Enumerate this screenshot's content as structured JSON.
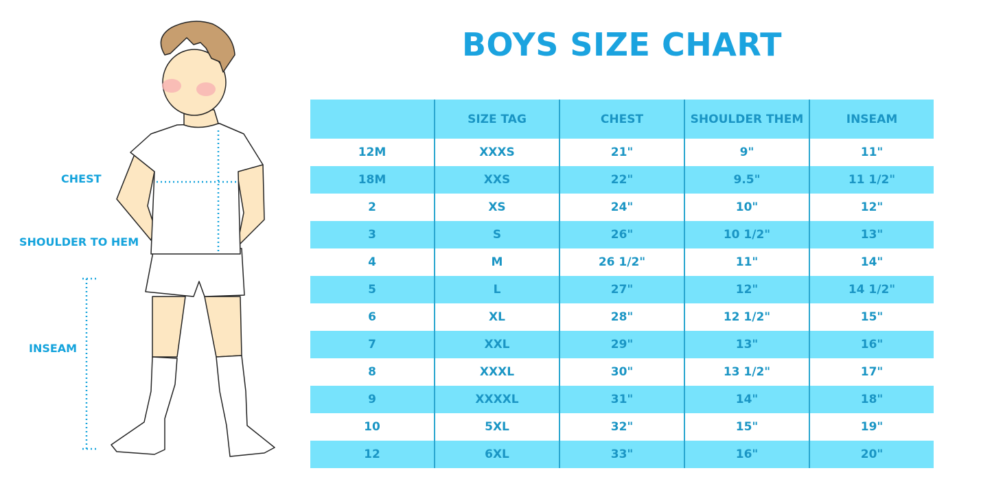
{
  "title": "BOYS SIZE CHART",
  "figure_labels": {
    "chest": "CHEST",
    "shoulder_to_hem": "SHOULDER TO HEM",
    "inseam": "INSEAM"
  },
  "colors": {
    "title": "#1ba3df",
    "row_highlight": "#77e3fc",
    "text": "#1a95c4"
  },
  "table": {
    "headers": [
      "",
      "SIZE TAG",
      "CHEST",
      "SHOULDER THEM",
      "INSEAM"
    ],
    "rows": [
      [
        "12M",
        "XXXS",
        "21\"",
        "9\"",
        "11\""
      ],
      [
        "18M",
        "XXS",
        "22\"",
        "9.5\"",
        "11 1/2\""
      ],
      [
        "2",
        "XS",
        "24\"",
        "10\"",
        "12\""
      ],
      [
        "3",
        "S",
        "26\"",
        "10 1/2\"",
        "13\""
      ],
      [
        "4",
        "M",
        "26 1/2\"",
        "11\"",
        "14\""
      ],
      [
        "5",
        "L",
        "27\"",
        "12\"",
        "14 1/2\""
      ],
      [
        "6",
        "XL",
        "28\"",
        "12 1/2\"",
        "15\""
      ],
      [
        "7",
        "XXL",
        "29\"",
        "13\"",
        "16\""
      ],
      [
        "8",
        "XXXL",
        "30\"",
        "13 1/2\"",
        "17\""
      ],
      [
        "9",
        "XXXXL",
        "31\"",
        "14\"",
        "18\""
      ],
      [
        "10",
        "5XL",
        "32\"",
        "15\"",
        "19\""
      ],
      [
        "12",
        "6XL",
        "33\"",
        "16\"",
        "20\""
      ]
    ]
  }
}
